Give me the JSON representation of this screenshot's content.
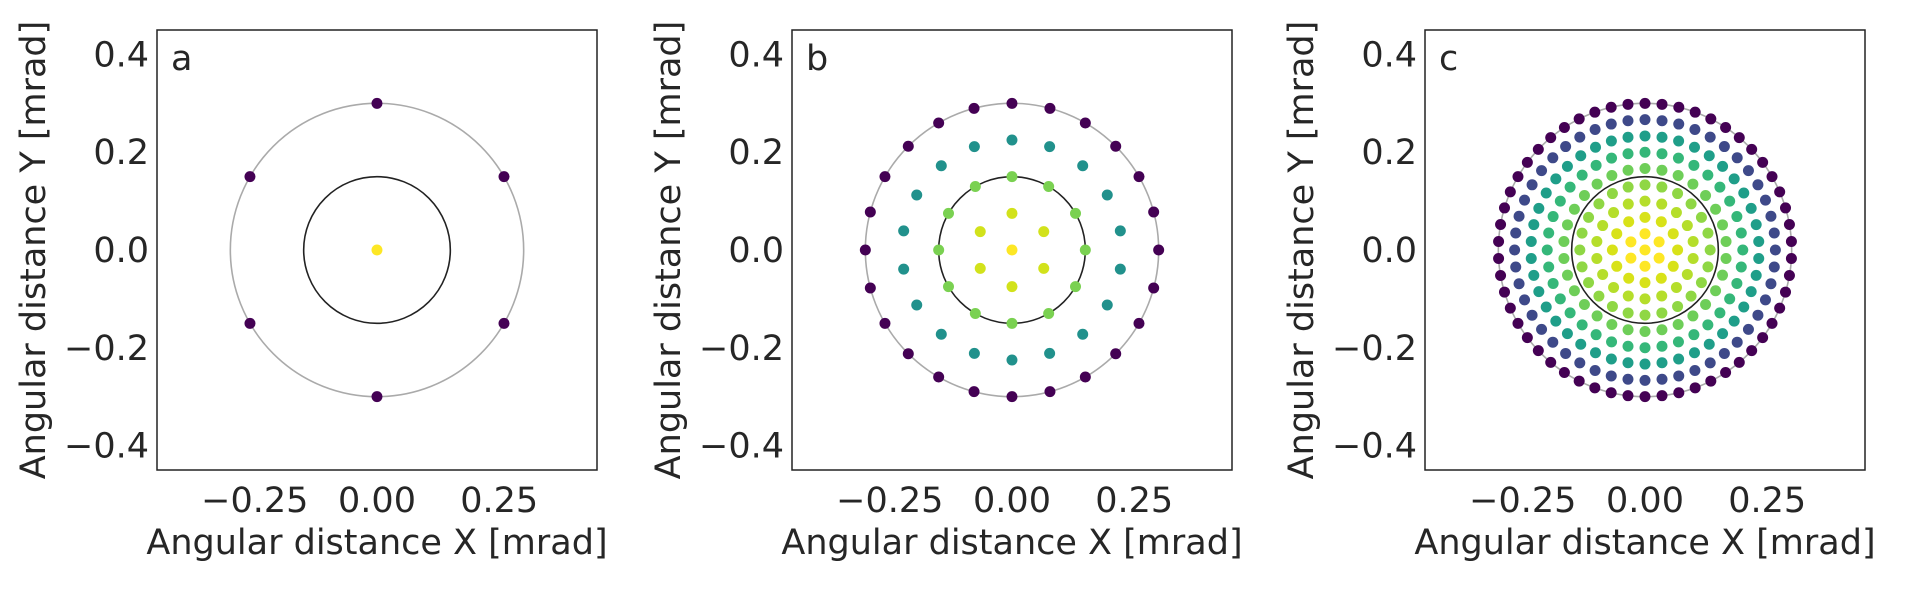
{
  "colors": {
    "outer_circle": "#aaaaaa",
    "inner_circle": "#222222",
    "frame": "#222222",
    "ring_palette": [
      "#fde725",
      "#b5de2b",
      "#6ece58",
      "#35b779",
      "#1f9e89",
      "#26828e",
      "#31688e",
      "#3e4989",
      "#482878",
      "#440154"
    ]
  },
  "chart_data": [
    {
      "type": "scatter",
      "panel_label": "a",
      "xlabel": "Angular distance X [mrad]",
      "ylabel": "Angular distance Y [mrad]",
      "xlim": [
        -0.45,
        0.45
      ],
      "ylim": [
        -0.45,
        0.45
      ],
      "xticks": [
        -0.25,
        0.0,
        0.25
      ],
      "xtick_labels": [
        "−0.25",
        "0.00",
        "0.25"
      ],
      "yticks": [
        0.4,
        0.2,
        0.0,
        -0.2,
        -0.4
      ],
      "ytick_labels": [
        "0.4",
        "0.2",
        "0.0",
        "−0.2",
        "−0.4"
      ],
      "grid": false,
      "circles": [
        {
          "radius": 0.3,
          "color": "#aaaaaa"
        },
        {
          "radius": 0.15,
          "color": "#222222"
        }
      ],
      "rings": [
        {
          "radius": 0.0,
          "count": 1,
          "color": "#fde725"
        },
        {
          "radius": 0.3,
          "count": 6,
          "color": "#440154"
        }
      ]
    },
    {
      "type": "scatter",
      "panel_label": "b",
      "xlabel": "Angular distance X [mrad]",
      "ylabel": "Angular distance Y [mrad]",
      "xlim": [
        -0.45,
        0.45
      ],
      "ylim": [
        -0.45,
        0.45
      ],
      "xticks": [
        -0.25,
        0.0,
        0.25
      ],
      "xtick_labels": [
        "−0.25",
        "0.00",
        "0.25"
      ],
      "yticks": [
        0.4,
        0.2,
        0.0,
        -0.2,
        -0.4
      ],
      "ytick_labels": [
        "0.4",
        "0.2",
        "0.0",
        "−0.2",
        "−0.4"
      ],
      "grid": false,
      "circles": [
        {
          "radius": 0.3,
          "color": "#aaaaaa"
        },
        {
          "radius": 0.15,
          "color": "#222222"
        }
      ],
      "rings": [
        {
          "radius": 0.0,
          "count": 1,
          "color": "#fde725"
        },
        {
          "radius": 0.075,
          "count": 6,
          "color": "#d2e21b"
        },
        {
          "radius": 0.15,
          "count": 12,
          "color": "#7ad151"
        },
        {
          "radius": 0.225,
          "count": 18,
          "color": "#21918c"
        },
        {
          "radius": 0.3,
          "count": 24,
          "color": "#440154"
        }
      ]
    },
    {
      "type": "scatter",
      "panel_label": "c",
      "xlabel": "Angular distance X [mrad]",
      "ylabel": "Angular distance Y [mrad]",
      "xlim": [
        -0.45,
        0.45
      ],
      "ylim": [
        -0.45,
        0.45
      ],
      "xticks": [
        -0.25,
        0.0,
        0.25
      ],
      "xtick_labels": [
        "−0.25",
        "0.00",
        "0.25"
      ],
      "yticks": [
        0.4,
        0.2,
        0.0,
        -0.2,
        -0.4
      ],
      "ytick_labels": [
        "0.4",
        "0.2",
        "0.0",
        "−0.2",
        "−0.4"
      ],
      "grid": false,
      "circles": [
        {
          "radius": 0.3,
          "color": "#aaaaaa"
        },
        {
          "radius": 0.15,
          "color": "#222222"
        }
      ],
      "rings": [
        {
          "radius": 0.0,
          "count": 1,
          "color": "#fde725"
        },
        {
          "radius": 0.0333,
          "count": 6,
          "color": "#fde725"
        },
        {
          "radius": 0.0667,
          "count": 12,
          "color": "#d8e219"
        },
        {
          "radius": 0.1,
          "count": 18,
          "color": "#b5de2b"
        },
        {
          "radius": 0.1333,
          "count": 24,
          "color": "#8fd744"
        },
        {
          "radius": 0.1667,
          "count": 30,
          "color": "#6ece58"
        },
        {
          "radius": 0.2,
          "count": 36,
          "color": "#35b779"
        },
        {
          "radius": 0.2333,
          "count": 42,
          "color": "#1f9e89"
        },
        {
          "radius": 0.2667,
          "count": 48,
          "color": "#3e4989"
        },
        {
          "radius": 0.3,
          "count": 54,
          "color": "#440154"
        }
      ]
    }
  ]
}
